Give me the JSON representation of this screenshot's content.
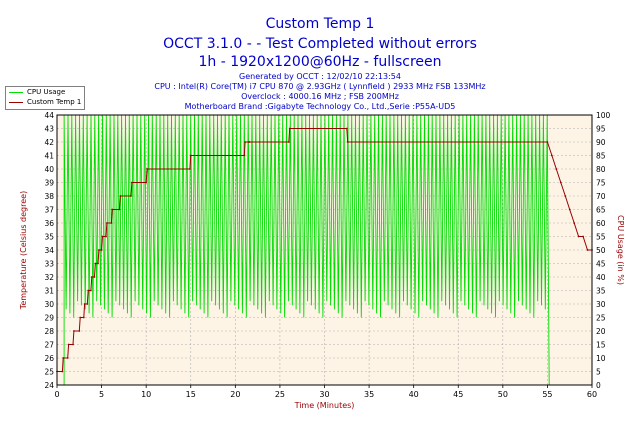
{
  "header": {
    "title_line1": "Custom Temp 1",
    "title_line2": "OCCT 3.1.0 -   - Test Completed without errors",
    "title_line3": "1h - 1920x1200@60Hz - fullscreen",
    "generated": "Generated by OCCT : 12/02/10 22:13:54",
    "cpu": "CPU : Intel(R) Core(TM) i7 CPU 870 @ 2.93GHz ( Lynnfield ) 2933 MHz FSB 133MHz",
    "overclock": "Overclock : 4000.16 MHz ; FSB 200MHz",
    "motherboard": "Motherboard Brand :Gigabyte Technology Co., Ltd.,Serie :P55A-UD5"
  },
  "legend": {
    "items": [
      {
        "label": "CPU Usage",
        "color": "#00dd00"
      },
      {
        "label": "Custom Temp 1",
        "color": "#990000"
      }
    ]
  },
  "colors": {
    "plot_bg": "#fdf4e6",
    "grid": "#b0b0b0",
    "cpu_usage": "#00dd00",
    "temperature": "#990000",
    "axis_label": "#990000"
  },
  "chart_data": {
    "type": "line",
    "xlabel": "Time (Minutes)",
    "ylabel": "Temperature (Celsius degree)",
    "y2label": "CPU Usage (in %)",
    "xlim": [
      0,
      60
    ],
    "ylim": [
      24,
      44
    ],
    "y2lim": [
      0,
      100
    ],
    "x_ticks": [
      0,
      5,
      10,
      15,
      20,
      25,
      30,
      35,
      40,
      45,
      50,
      55,
      60
    ],
    "y_ticks": [
      24,
      25,
      26,
      27,
      28,
      29,
      30,
      31,
      32,
      33,
      34,
      35,
      36,
      37,
      38,
      39,
      40,
      41,
      42,
      43,
      44
    ],
    "y2_ticks": [
      0,
      5,
      10,
      15,
      20,
      25,
      30,
      35,
      40,
      45,
      50,
      55,
      60,
      65,
      70,
      75,
      80,
      85,
      90,
      95,
      100
    ],
    "grid": true,
    "legend_position": "top-left",
    "series": [
      {
        "name": "Custom Temp 1",
        "axis": "left",
        "x": [
          0,
          0.6,
          0.7,
          1.2,
          1.3,
          1.8,
          1.9,
          2.5,
          2.6,
          3.0,
          3.1,
          3.4,
          3.5,
          3.8,
          3.9,
          4.2,
          4.3,
          4.6,
          4.7,
          5.0,
          5.1,
          5.5,
          5.6,
          6.1,
          6.2,
          7.0,
          7.1,
          8.3,
          8.4,
          10.0,
          10.1,
          14.9,
          15.0,
          21.0,
          21.1,
          21.5,
          21.6,
          26.0,
          26.1,
          32.5,
          32.6,
          55.0,
          55.5,
          56.0,
          56.5,
          57.0,
          57.5,
          58.0,
          58.5,
          59.0,
          59.5,
          60.0
        ],
        "y": [
          25,
          25,
          26,
          26,
          27,
          27,
          28,
          28,
          29,
          29,
          30,
          30,
          31,
          31,
          32,
          32,
          33,
          33,
          34,
          34,
          35,
          35,
          36,
          36,
          37,
          37,
          38,
          38,
          39,
          39,
          40,
          40,
          41,
          41,
          42,
          42,
          42,
          42,
          43,
          43,
          42,
          42,
          41,
          40,
          39,
          38,
          37,
          36,
          35,
          35,
          34,
          34
        ]
      },
      {
        "name": "CPU Usage",
        "axis": "right",
        "pattern": "oscillating",
        "x_start": 0.8,
        "x_end": 55.3,
        "high": 100,
        "low": 25,
        "dips_to_zero_at": [
          30.0,
          55.3
        ],
        "after_end_value": 0
      }
    ]
  }
}
